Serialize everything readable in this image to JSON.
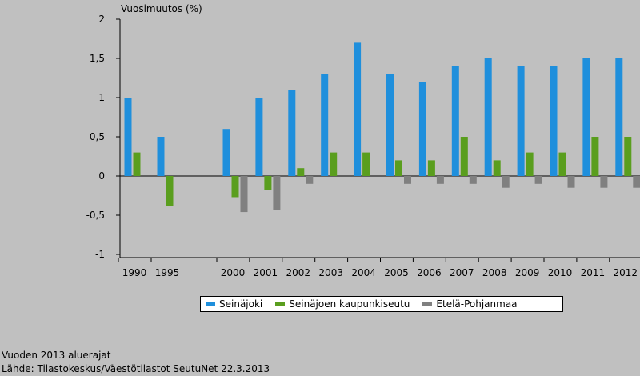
{
  "chart_data": {
    "type": "bar",
    "ylabel": "Vuosimuutos (%)",
    "ylim": [
      -1,
      2
    ],
    "yticks": [
      "-1",
      "-0,5",
      "0",
      "0,5",
      "1",
      "1,5",
      "2"
    ],
    "categories": [
      "1990",
      "1995",
      "2000",
      "2001",
      "2002",
      "2003",
      "2004",
      "2005",
      "2006",
      "2007",
      "2008",
      "2009",
      "2010",
      "2011",
      "2012"
    ],
    "series": [
      {
        "name": "Seinäjoki",
        "color": "#1f8fdc",
        "values": [
          1.0,
          0.5,
          0.6,
          1.0,
          1.1,
          1.3,
          1.7,
          1.3,
          1.2,
          1.4,
          1.5,
          1.4,
          1.4,
          1.5,
          1.5
        ]
      },
      {
        "name": "Seinäjoen kaupunkiseutu",
        "color": "#5a9e1e",
        "values": [
          0.3,
          -0.38,
          -0.27,
          -0.18,
          0.1,
          0.3,
          0.3,
          0.2,
          0.2,
          0.5,
          0.2,
          0.3,
          0.3,
          0.5,
          0.5
        ]
      },
      {
        "name": "Etelä-Pohjanmaa",
        "color": "#808080",
        "values": [
          0.0,
          0.0,
          -0.46,
          -0.43,
          -0.1,
          0.0,
          0.0,
          -0.1,
          -0.1,
          -0.1,
          -0.15,
          -0.1,
          -0.15,
          -0.15,
          -0.15
        ]
      }
    ],
    "grid": false,
    "legend": "bottom"
  },
  "footer": {
    "note": "Vuoden 2013 aluerajat",
    "source": "Lähde: Tilastokeskus/Väestötilastot  SeutuNet 22.3.2013"
  }
}
